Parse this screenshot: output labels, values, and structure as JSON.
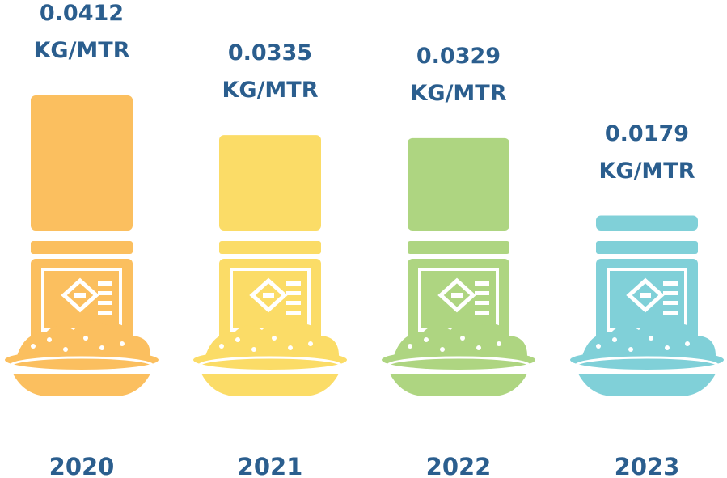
{
  "chart_data": {
    "type": "bar",
    "categories": [
      "2020",
      "2021",
      "2022",
      "2023"
    ],
    "values": [
      0.0412,
      0.0335,
      0.0329,
      0.0179
    ],
    "value_labels": [
      "0.0412 KG/MTR",
      "0.0335 KG/MTR",
      "0.0329 KG/MTR",
      "0.0179 KG/MTR"
    ],
    "colors": [
      "#fbbf5f",
      "#fbdc67",
      "#aed581",
      "#80d0d8"
    ],
    "ylim": [
      0.015,
      0.0412
    ]
  }
}
